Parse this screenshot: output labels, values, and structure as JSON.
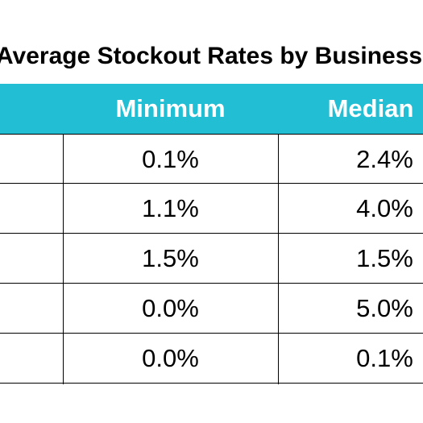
{
  "title": "Average Stockout Rates by Business",
  "columns": {
    "minimum": "Minimum",
    "median": "Median"
  },
  "rows": [
    {
      "minimum": "0.1%",
      "median": "2.4%"
    },
    {
      "minimum": "1.1%",
      "median": "4.0%"
    },
    {
      "minimum": "1.5%",
      "median": "1.5%"
    },
    {
      "minimum": "0.0%",
      "median": "5.0%"
    },
    {
      "minimum": "0.0%",
      "median": "0.1%"
    }
  ],
  "colors": {
    "header_background": "#22bed3",
    "header_text": "#ffffff",
    "grid_lines": "#000000"
  }
}
